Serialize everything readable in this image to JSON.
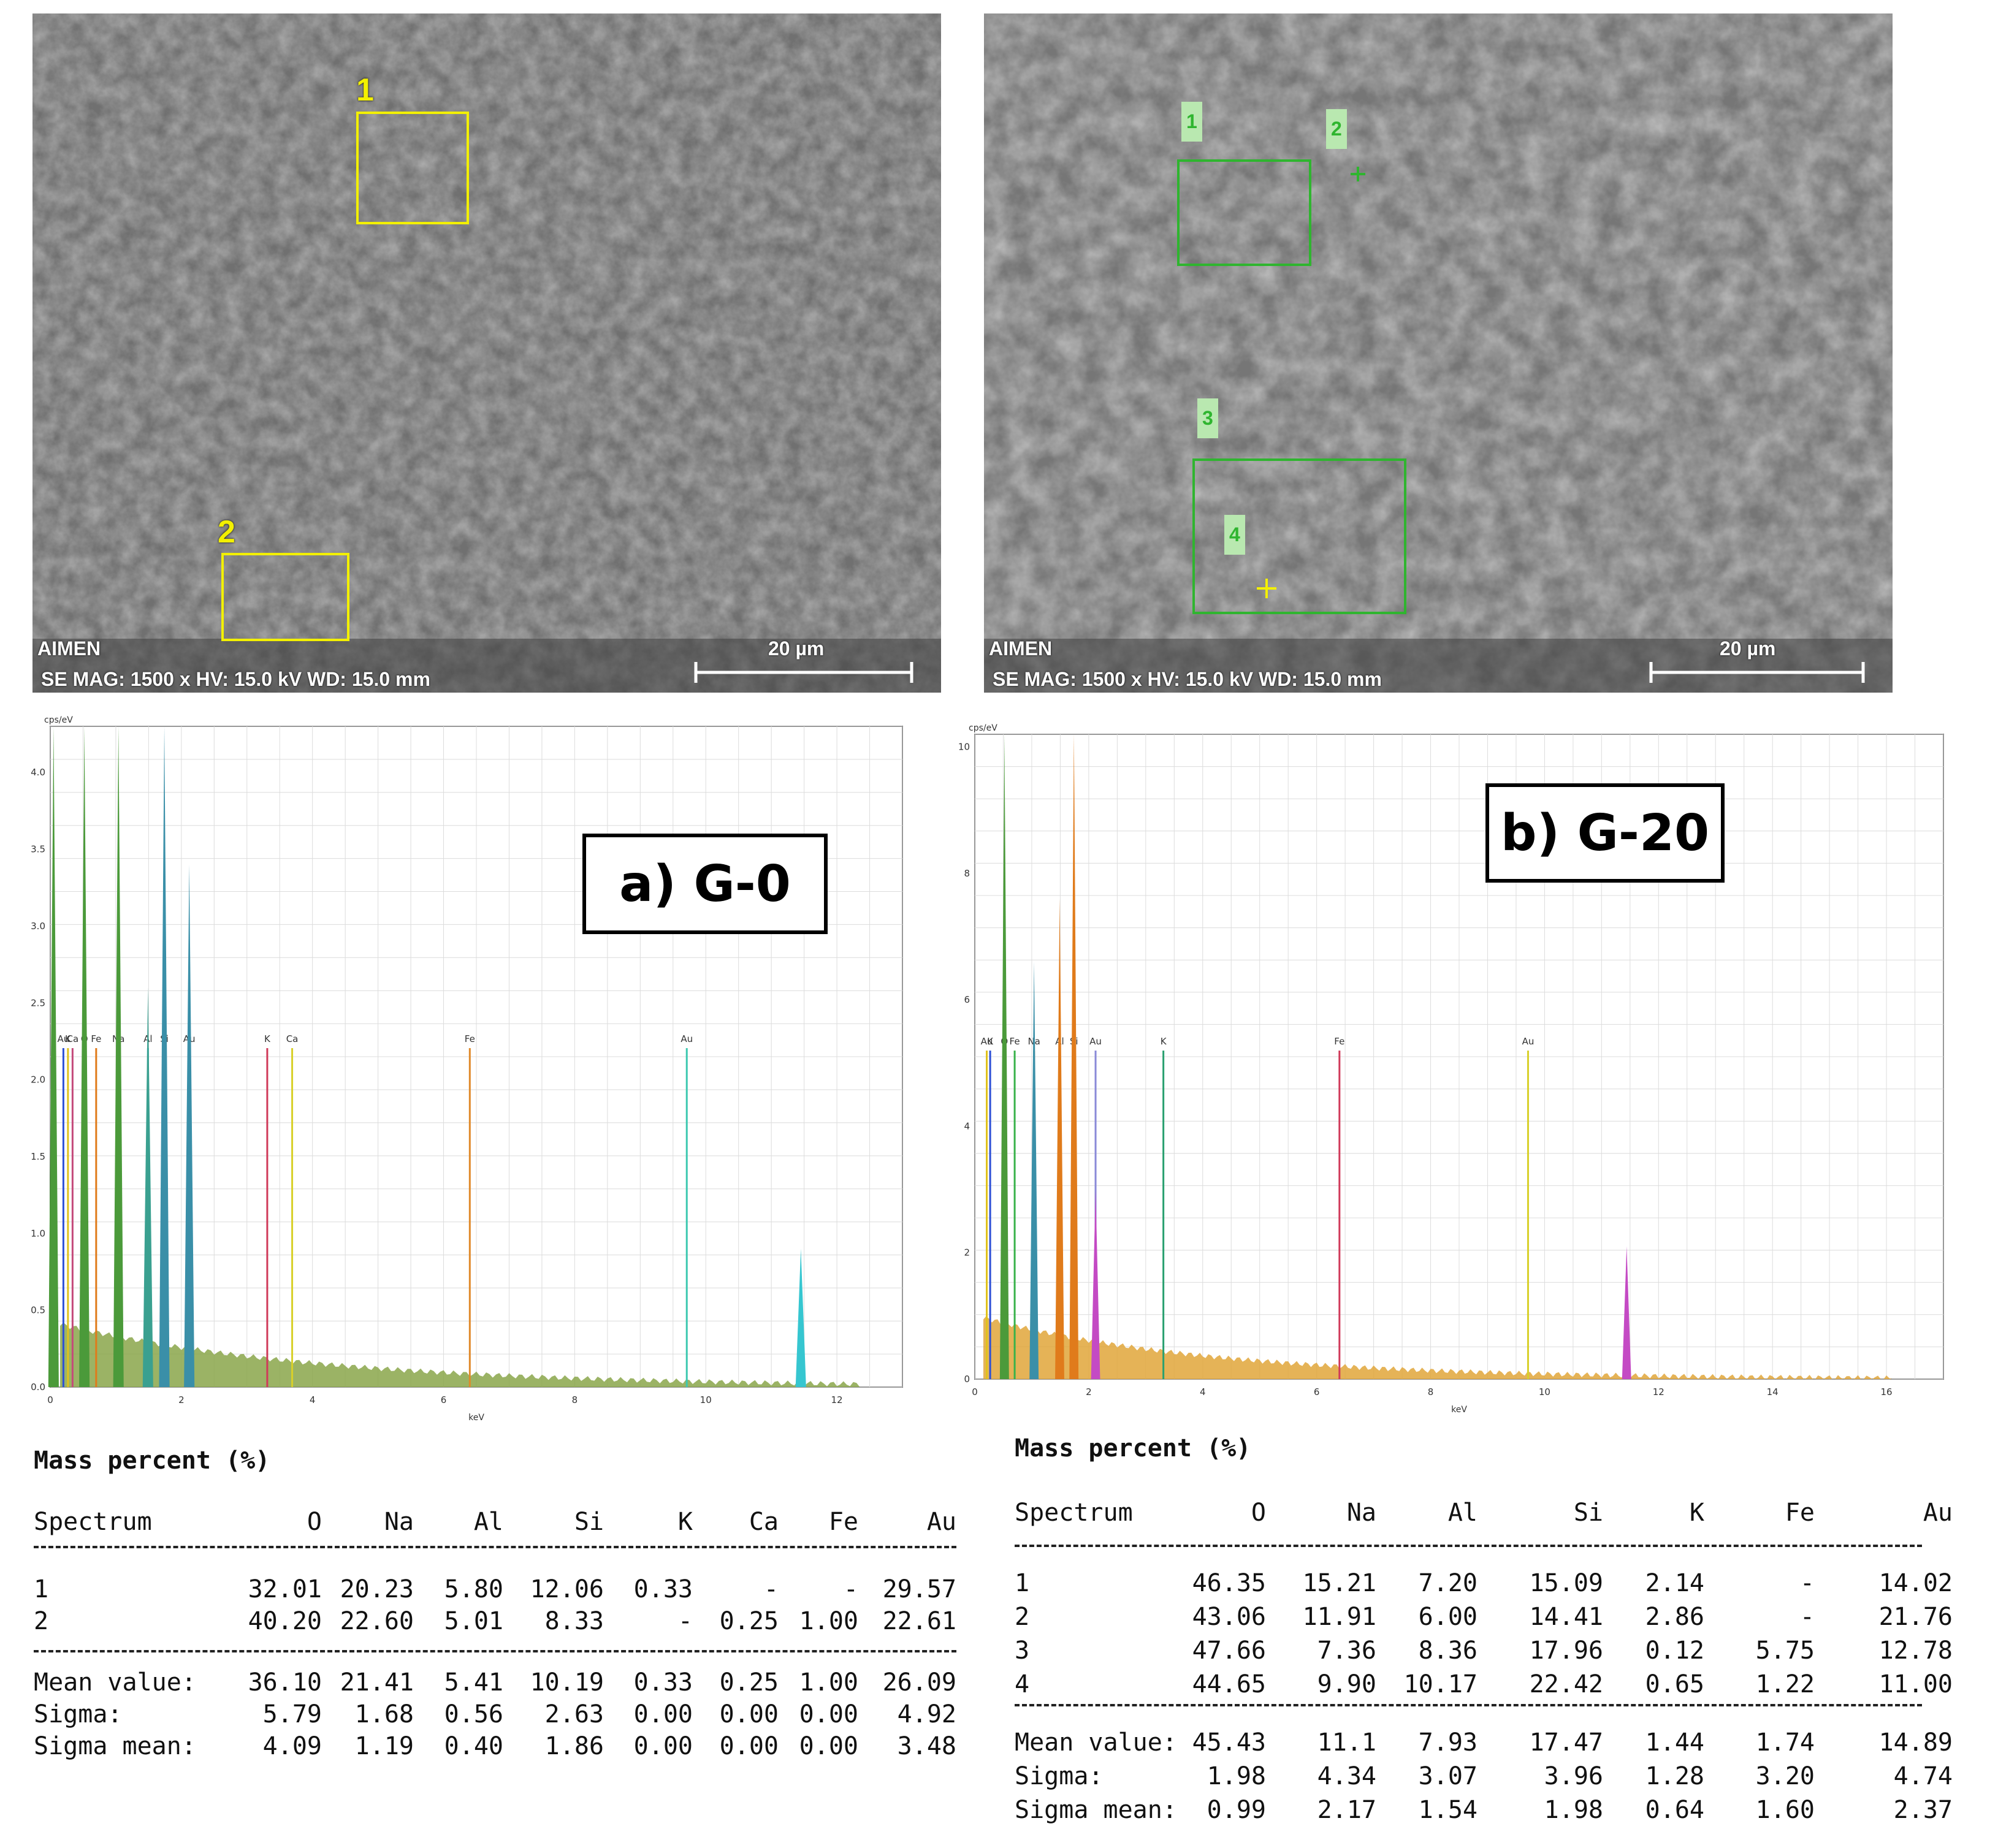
{
  "panels": [
    {
      "id": "a",
      "sem": {
        "brand": "AIMEN",
        "info": "SE  MAG: 1500 x  HV: 15.0 kV  WD: 15.0 mm",
        "scale_bar": "20 µm",
        "marker_color": "#f3f000",
        "markers": [
          "1",
          "2"
        ]
      },
      "spectrum": {
        "label": "a) G-0",
        "y_unit": "cps/eV",
        "x_unit": "keV",
        "x_ticks": [
          "0",
          "2",
          "4",
          "6",
          "8",
          "10",
          "12"
        ],
        "y_ticks": [
          "0.0",
          "0.5",
          "1.0",
          "1.5",
          "2.0",
          "2.5",
          "3.0",
          "3.5",
          "4.0"
        ],
        "element_labels": [
          {
            "text": "Au",
            "x": 0.2
          },
          {
            "text": "K",
            "x": 0.27
          },
          {
            "text": "Ca",
            "x": 0.34
          },
          {
            "text": "O",
            "x": 0.52
          },
          {
            "text": "Fe",
            "x": 0.7
          },
          {
            "text": "Na",
            "x": 1.04
          },
          {
            "text": "Al",
            "x": 1.49
          },
          {
            "text": "Si",
            "x": 1.74
          },
          {
            "text": "Au",
            "x": 2.12
          },
          {
            "text": "K",
            "x": 3.31
          },
          {
            "text": "Ca",
            "x": 3.69
          },
          {
            "text": "Fe",
            "x": 6.4
          },
          {
            "text": "Au",
            "x": 9.71
          }
        ]
      },
      "mass_percent": {
        "title": "Mass percent (%)",
        "columns": [
          "Spectrum",
          "O",
          "Na",
          "Al",
          "Si",
          "K",
          "Ca",
          "Fe",
          "Au"
        ],
        "rows": [
          [
            "1",
            "32.01",
            "20.23",
            "5.80",
            "12.06",
            "0.33",
            "-",
            "-",
            "29.57"
          ],
          [
            "2",
            "40.20",
            "22.60",
            "5.01",
            "8.33",
            "-",
            "0.25",
            "1.00",
            "22.61"
          ]
        ],
        "stats": [
          [
            "Mean value:",
            "36.10",
            "21.41",
            "5.41",
            "10.19",
            "0.33",
            "0.25",
            "1.00",
            "26.09"
          ],
          [
            "Sigma:",
            "5.79",
            "1.68",
            "0.56",
            "2.63",
            "0.00",
            "0.00",
            "0.00",
            "4.92"
          ],
          [
            "Sigma mean:",
            "4.09",
            "1.19",
            "0.40",
            "1.86",
            "0.00",
            "0.00",
            "0.00",
            "3.48"
          ]
        ]
      }
    },
    {
      "id": "b",
      "sem": {
        "brand": "AIMEN",
        "info": "SE  MAG: 1500 x  HV: 15.0 kV  WD: 15.0 mm",
        "scale_bar": "20 µm",
        "marker_color": "#2fb52f",
        "markers": [
          "1",
          "2",
          "3",
          "4"
        ]
      },
      "spectrum": {
        "label": "b) G-20",
        "y_unit": "cps/eV",
        "x_unit": "keV",
        "x_ticks": [
          "0",
          "2",
          "4",
          "6",
          "8",
          "10",
          "12",
          "14",
          "16"
        ],
        "y_ticks": [
          "0",
          "2",
          "4",
          "6",
          "8",
          "10"
        ],
        "element_labels": [
          {
            "text": "K",
            "x": 0.27
          },
          {
            "text": "Au",
            "x": 0.21
          },
          {
            "text": "O",
            "x": 0.52
          },
          {
            "text": "Fe",
            "x": 0.7
          },
          {
            "text": "Na",
            "x": 1.04
          },
          {
            "text": "Al",
            "x": 1.49
          },
          {
            "text": "Si",
            "x": 1.74
          },
          {
            "text": "Au",
            "x": 2.12
          },
          {
            "text": "K",
            "x": 3.31
          },
          {
            "text": "Fe",
            "x": 6.4
          },
          {
            "text": "Au",
            "x": 9.71
          }
        ]
      },
      "mass_percent": {
        "title": "Mass percent (%)",
        "columns": [
          "Spectrum",
          "O",
          "Na",
          "Al",
          "Si",
          "K",
          "Fe",
          "Au"
        ],
        "rows": [
          [
            "1",
            "46.35",
            "15.21",
            "7.20",
            "15.09",
            "2.14",
            "-",
            "14.02"
          ],
          [
            "2",
            "43.06",
            "11.91",
            "6.00",
            "14.41",
            "2.86",
            "-",
            "21.76"
          ],
          [
            "3",
            "47.66",
            "7.36",
            "8.36",
            "17.96",
            "0.12",
            "5.75",
            "12.78"
          ],
          [
            "4",
            "44.65",
            "9.90",
            "10.17",
            "22.42",
            "0.65",
            "1.22",
            "11.00"
          ]
        ],
        "stats": [
          [
            "Mean value:",
            "45.43",
            "11.1",
            "7.93",
            "17.47",
            "1.44",
            "1.74",
            "14.89"
          ],
          [
            "Sigma:",
            "1.98",
            "4.34",
            "3.07",
            "3.96",
            "1.28",
            "3.20",
            "4.74"
          ],
          [
            "Sigma mean:",
            "0.99",
            "2.17",
            "1.54",
            "1.98",
            "0.64",
            "1.60",
            "2.37"
          ]
        ]
      }
    }
  ]
}
